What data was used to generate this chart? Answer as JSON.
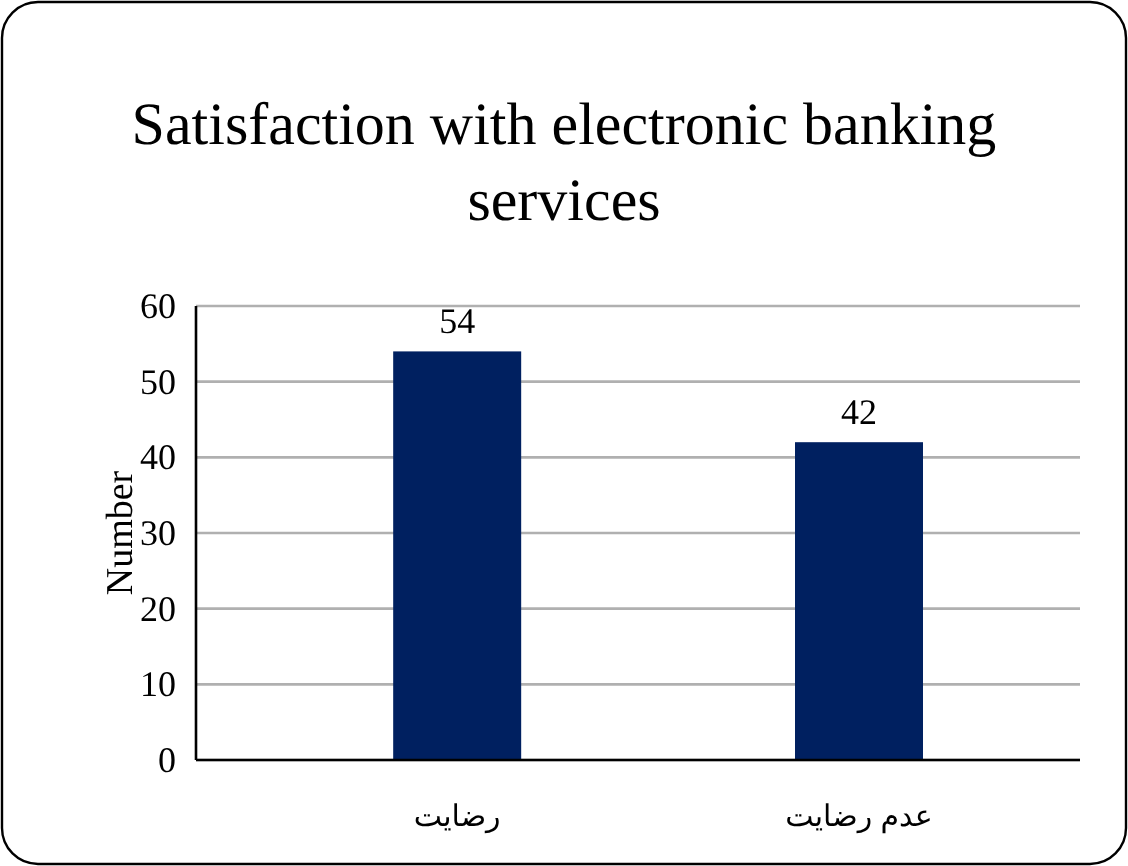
{
  "chart_data": {
    "type": "bar",
    "title": "Satisfaction with electronic banking services",
    "ylabel": "Number",
    "categories": [
      "رضایت",
      "عدم رضایت"
    ],
    "values": [
      54,
      42
    ],
    "color": "#002060",
    "ylim": [
      0,
      60
    ],
    "yticks": [
      0,
      10,
      20,
      30,
      40,
      50,
      60
    ],
    "grid": "y",
    "data_labels": true
  }
}
